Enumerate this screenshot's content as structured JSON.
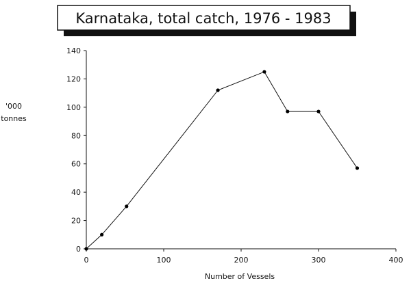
{
  "chart_data": {
    "type": "line",
    "title": "Karnataka, total catch, 1976 - 1983",
    "xlabel": "Number of Vessels",
    "ylabel_line1": "'000",
    "ylabel_line2": "tonnes",
    "xlim": [
      0,
      400
    ],
    "ylim": [
      0,
      140
    ],
    "x_ticks": [
      0,
      100,
      200,
      300,
      400
    ],
    "y_ticks": [
      0,
      20,
      40,
      60,
      80,
      100,
      120,
      140
    ],
    "grid": false,
    "series": [
      {
        "x": [
          0,
          20,
          52,
          170,
          230,
          260,
          300,
          350
        ],
        "y": [
          0,
          10,
          30,
          112,
          125,
          97,
          97,
          57
        ]
      }
    ],
    "colors": {
      "line": "#111111",
      "marker": "#000000",
      "axis": "#111111"
    }
  }
}
